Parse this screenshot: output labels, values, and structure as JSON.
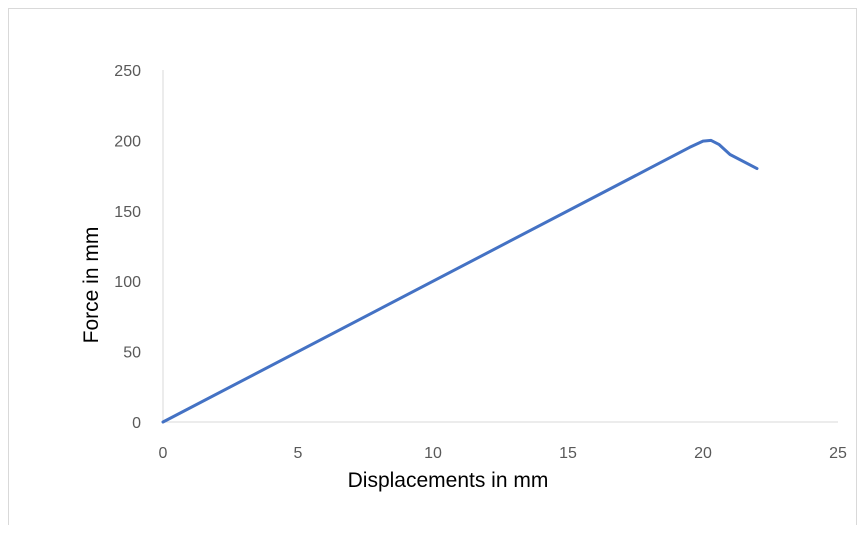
{
  "chart_data": {
    "type": "line",
    "title": "",
    "xlabel": "Displacements in mm",
    "ylabel": "Force in mm",
    "xlim": [
      0,
      25
    ],
    "ylim": [
      0,
      250
    ],
    "x_ticks": [
      "0",
      "5",
      "10",
      "15",
      "20",
      "25"
    ],
    "y_ticks": [
      "0",
      "50",
      "100",
      "150",
      "200",
      "250"
    ],
    "grid": false,
    "legend": "none",
    "series": [
      {
        "color": "#4472c4",
        "x": [
          0,
          18,
          19.5,
          20.0,
          20.3,
          20.6,
          21.0,
          22.0
        ],
        "y": [
          0,
          180,
          195,
          199.5,
          200,
          197,
          190,
          180
        ]
      }
    ]
  }
}
